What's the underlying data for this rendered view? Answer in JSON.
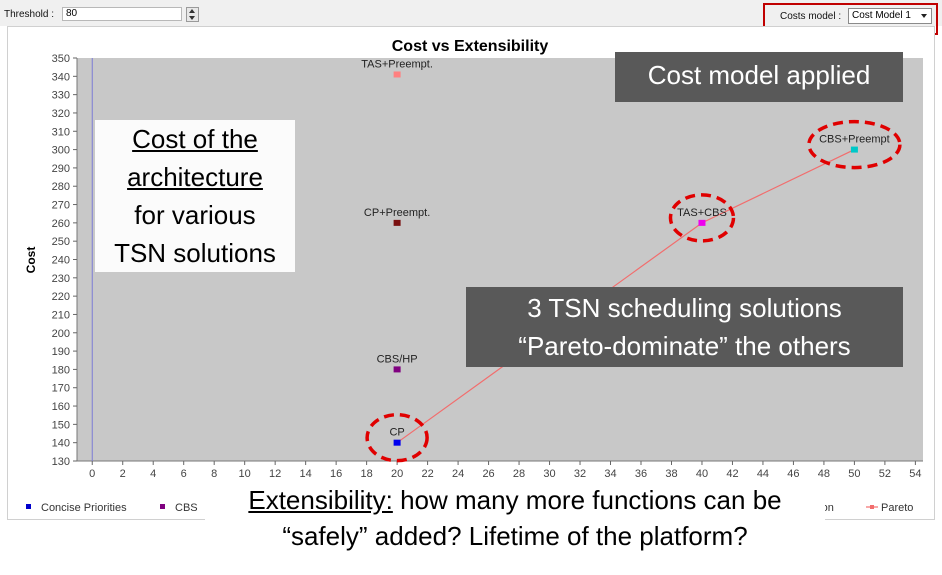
{
  "toolbar": {
    "threshold_label": "Threshold :",
    "threshold_value": "80",
    "costs_model_label": "Costs model :",
    "costs_model_selected": "Cost Model 1"
  },
  "chart_data": {
    "type": "scatter",
    "title": "Cost vs Extensibility",
    "xlabel": "",
    "ylabel": "Cost",
    "xlim": [
      -1,
      54.5
    ],
    "ylim": [
      130,
      350
    ],
    "x_ticks": [
      0,
      2,
      4,
      6,
      8,
      10,
      12,
      14,
      16,
      18,
      20,
      22,
      24,
      26,
      28,
      30,
      32,
      34,
      36,
      38,
      40,
      42,
      44,
      46,
      48,
      50,
      52,
      54
    ],
    "y_ticks": [
      130,
      140,
      150,
      160,
      170,
      180,
      190,
      200,
      210,
      220,
      230,
      240,
      250,
      260,
      270,
      280,
      290,
      300,
      310,
      320,
      330,
      340,
      350
    ],
    "grid": false,
    "points": [
      {
        "label": "TAS+Preempt.",
        "x": 20,
        "y": 341,
        "color": "#ff8080"
      },
      {
        "label": "CP+Preempt.",
        "x": 20,
        "y": 260,
        "color": "#7a1010"
      },
      {
        "label": "CBS/HP",
        "x": 20,
        "y": 180,
        "color": "#800080"
      },
      {
        "label": "CP",
        "x": 20,
        "y": 140,
        "color": "#0000ee"
      },
      {
        "label": "TAS+CBS",
        "x": 40,
        "y": 260,
        "color": "#ee00ee"
      },
      {
        "label": "CBS+Preempt",
        "x": 50,
        "y": 300,
        "color": "#00c8c8"
      }
    ],
    "pareto": {
      "x": [
        20,
        40,
        50
      ],
      "y": [
        140,
        260,
        300
      ],
      "color": "#f26d6d"
    },
    "highlighted": [
      "CP",
      "TAS+CBS",
      "CBS+Preempt"
    ],
    "legend": {
      "placement": "bottom",
      "entries": [
        {
          "name": "Concise Priorities",
          "color": "#0000cc"
        },
        {
          "name": "CBS",
          "color": "#800080"
        },
        {
          "name": "ation",
          "color": ""
        },
        {
          "name": "Pareto",
          "color": "#f26d6d"
        }
      ]
    }
  },
  "annotations": {
    "cost_caption": [
      "Cost of the",
      "architecture",
      "for various",
      "TSN solutions"
    ],
    "cost_model_applied": "Cost model applied",
    "pareto_line1": "3 TSN scheduling solutions",
    "pareto_line2": "“Pareto-dominate” the others",
    "ext_underlined": "Extensibility:",
    "ext_rest": " how many more functions can be",
    "ext_line2": "“safely” added? Lifetime of the platform?"
  }
}
